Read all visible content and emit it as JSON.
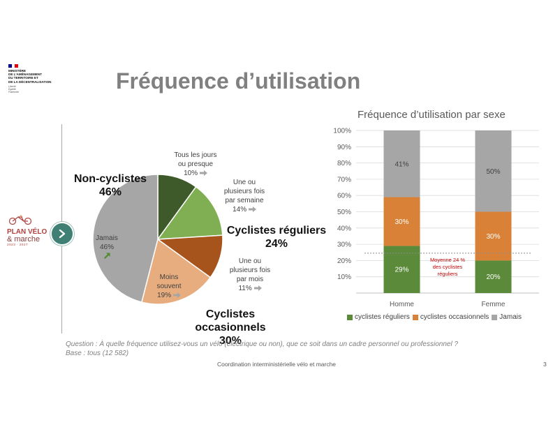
{
  "ministry": {
    "name": "MINISTÈRE\nDE L'AMÉNAGEMENT\nDU TERRITOIRE ET\nDE LA DÉCENTRALISATION",
    "motto": "Liberté\nÉgalité\nFraternité",
    "flag_colors": [
      "#000091",
      "#ffffff",
      "#e1000f"
    ]
  },
  "page_title": "Fréquence d’utilisation",
  "logo": {
    "line1": "PLAN VÉLO",
    "line2": "& marche",
    "line3": "2023 · 2027"
  },
  "footer": "Coordination interministérielle vélo et marche",
  "page_number": "3",
  "question": {
    "line1": "Question : À quelle fréquence utilisez-vous un vélo (électrique ou non), que ce soit dans un cadre personnel ou professionnel ?",
    "line2": "Base : tous (12 582)"
  },
  "chart_data": [
    {
      "type": "pie",
      "slices": [
        {
          "label": "Tous les jours\nou presque",
          "value": 10,
          "display": "10%",
          "color": "#3e5a2b"
        },
        {
          "label": "Une ou\nplusieurs fois\npar semaine",
          "value": 14,
          "display": "14%",
          "color": "#7faf52"
        },
        {
          "label": "Une ou\nplusieurs fois\npar mois",
          "value": 11,
          "display": "11%",
          "color": "#a6541c"
        },
        {
          "label": "Moins\nsouvent",
          "value": 19,
          "display": "19%",
          "color": "#e8ad7f"
        },
        {
          "label": "Jamais",
          "value": 46,
          "display": "46%",
          "color": "#a6a6a6"
        }
      ],
      "groups": [
        {
          "label": "Non-cyclistes",
          "value": "46%"
        },
        {
          "label": "Cyclistes réguliers",
          "value": "24%"
        },
        {
          "label": "Cyclistes\noccasionnels",
          "value": "30%"
        }
      ],
      "trend_colors": {
        "up": "#4e8a2e",
        "flat": "#a6a6a6"
      }
    },
    {
      "type": "bar",
      "stacked": true,
      "title": "Fréquence d’utilisation par sexe",
      "categories": [
        "Homme",
        "Femme"
      ],
      "series": [
        {
          "name": "cyclistes réguliers",
          "color": "#5a8a3a",
          "values": [
            29,
            20
          ],
          "display": [
            "29%",
            "20%"
          ]
        },
        {
          "name": "cyclistes occasionnels",
          "color": "#d98237",
          "values": [
            30,
            30
          ],
          "display": [
            "30%",
            "30%"
          ]
        },
        {
          "name": "Jamais",
          "color": "#a6a6a6",
          "values": [
            41,
            50
          ],
          "display": [
            "41%",
            "50%"
          ]
        }
      ],
      "ylim": [
        0,
        100
      ],
      "yticks": [
        10,
        20,
        30,
        40,
        50,
        60,
        70,
        80,
        90,
        100
      ],
      "ytick_labels": [
        "10%",
        "20%",
        "30%",
        "40%",
        "50%",
        "60%",
        "70%",
        "80%",
        "90%",
        "100%"
      ],
      "grid": true,
      "legend_position": "bottom",
      "reference_line": {
        "value": 24.5,
        "label": "Moyenne 24 %\ndes cyclistes\nréguliers",
        "color": "#c00000"
      }
    }
  ]
}
